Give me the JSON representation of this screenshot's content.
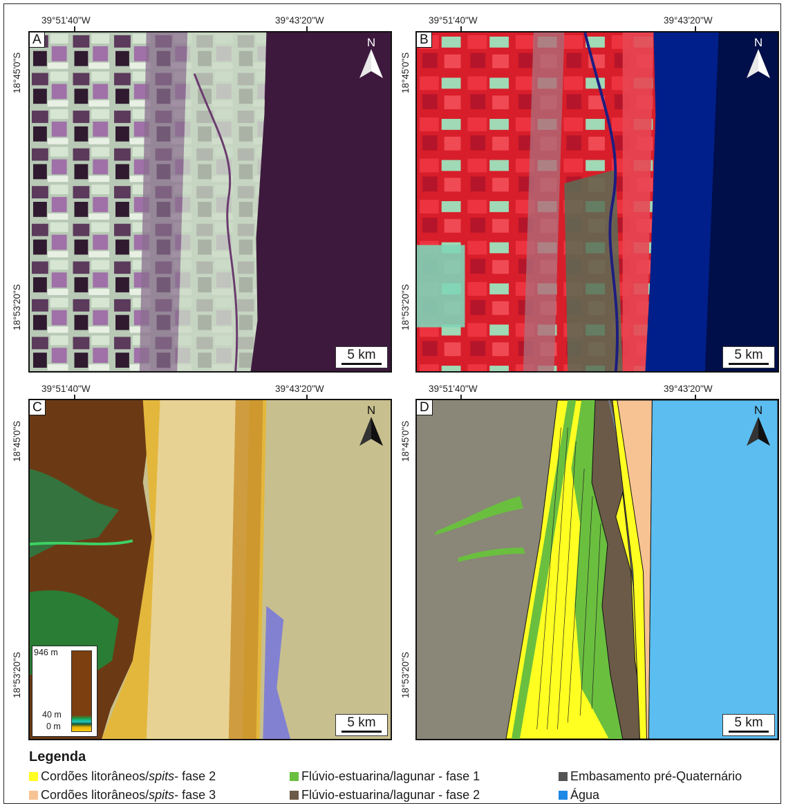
{
  "coordinates": {
    "lon_left": "39°51'40\"W",
    "lon_right": "39°43'20\"W",
    "lat_top": "18°45'0\"S",
    "lat_bottom": "18°53'20\"S"
  },
  "panels": [
    {
      "label": "A",
      "north": "N",
      "scale": "5 km"
    },
    {
      "label": "B",
      "north": "N",
      "scale": "5 km"
    },
    {
      "label": "C",
      "north": "N",
      "scale": "5 km",
      "elevation_legend": {
        "max": "946 m",
        "mid": "40 m",
        "min": "0 m"
      }
    },
    {
      "label": "D",
      "north": "N",
      "scale": "5 km"
    }
  ],
  "legend": {
    "title": "Legenda",
    "items": [
      {
        "label_prefix": "Cordões litorâneos/",
        "label_italic": "spits",
        "label_suffix": " - fase 2",
        "color": "#ffff22"
      },
      {
        "label_prefix": "Cordões litorâneos/",
        "label_italic": "spits",
        "label_suffix": " - fase 3",
        "color": "#f7c393"
      },
      {
        "label_prefix": "Flúvio-estuarina/lagunar - fase 1",
        "label_italic": "",
        "label_suffix": "",
        "color": "#6abf3f"
      },
      {
        "label_prefix": "Flúvio-estuarina/lagunar - fase 2",
        "label_italic": "",
        "label_suffix": "",
        "color": "#6b5a48"
      },
      {
        "label_prefix": "Embasamento pré-Quaternário",
        "label_italic": "",
        "label_suffix": "",
        "color": "#545454"
      },
      {
        "label_prefix": "Água",
        "label_italic": "",
        "label_suffix": "",
        "color": "#1e88e5"
      }
    ]
  },
  "colors": {
    "panel_a_water": "#3d1a3d",
    "panel_b_land": "#d81e2a",
    "panel_b_water": "#001a66",
    "panel_d_basement": "#8a8678",
    "panel_d_water": "#5bbdf0"
  }
}
